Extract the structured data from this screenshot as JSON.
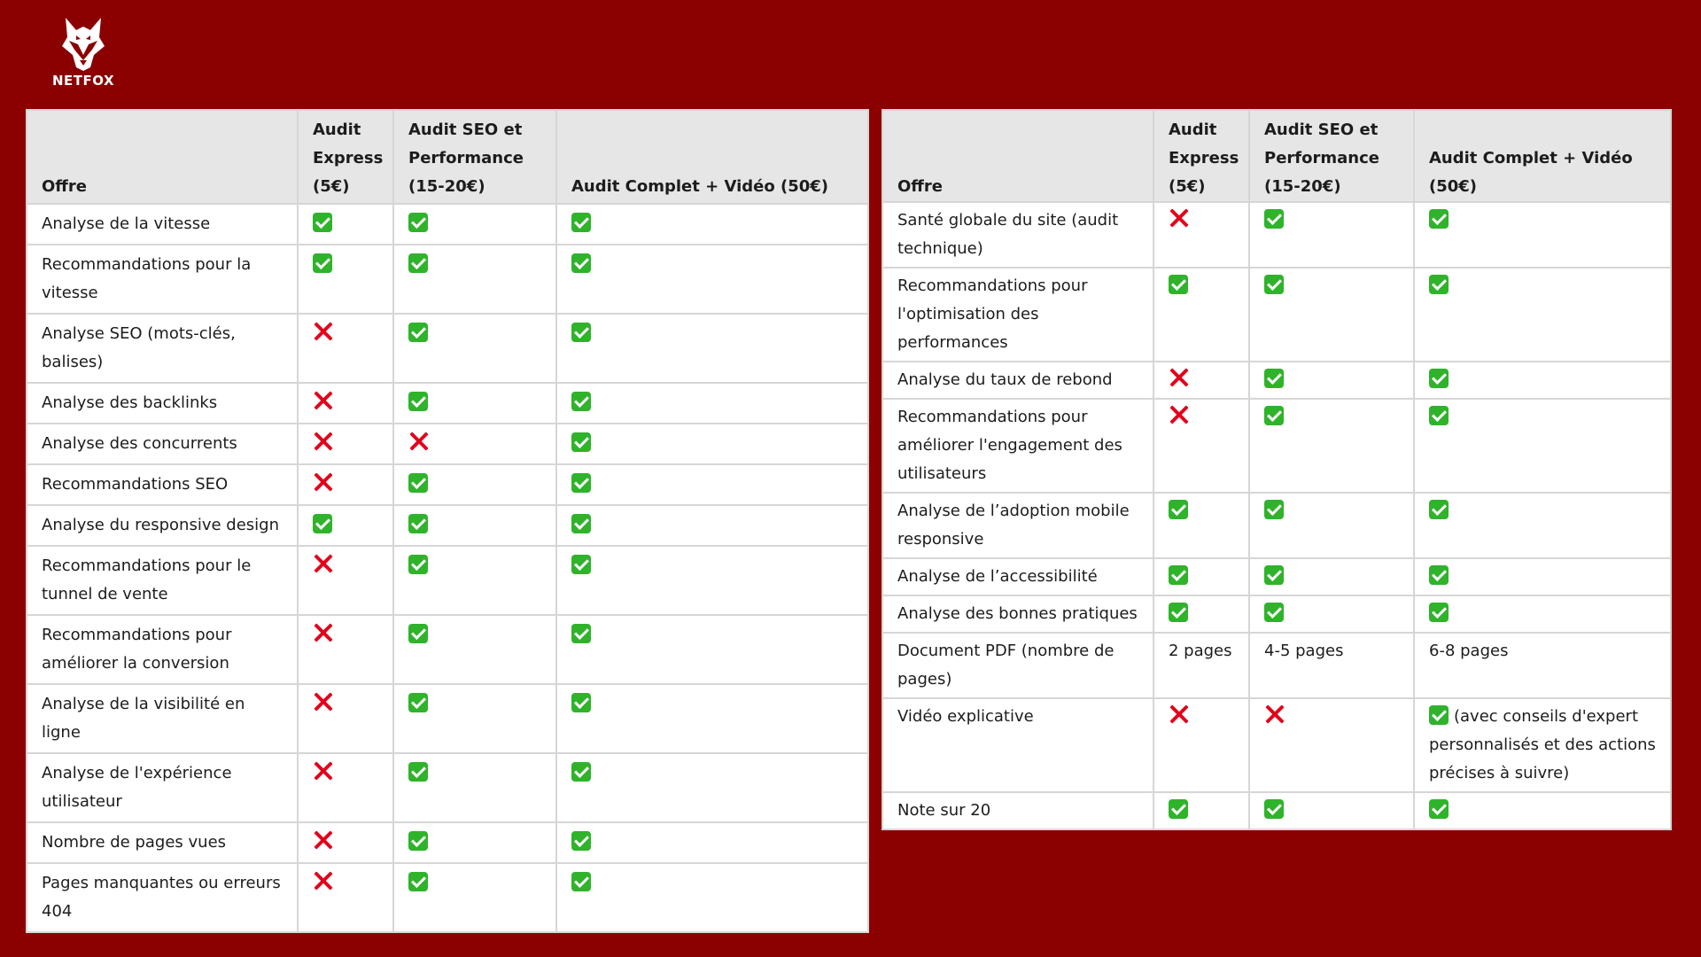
{
  "brand": {
    "name": "NETFOX"
  },
  "icons": {
    "yes": "check-icon",
    "no": "cross-icon",
    "logo": "fox-logo-icon"
  },
  "colors": {
    "background": "#8b0000",
    "check": "#2fb32b",
    "cross": "#e3001b",
    "header": "#e6e6e6"
  },
  "columns": [
    "Offre",
    "Audit Express (5€)",
    "Audit SEO et Performance (15-20€)",
    "Audit Complet + Vidéo (50€)"
  ],
  "left_table": {
    "rows": [
      {
        "label": "Analyse de la vitesse",
        "cells": [
          "yes",
          "yes",
          "yes"
        ]
      },
      {
        "label": "Recommandations pour la vitesse",
        "cells": [
          "yes",
          "yes",
          "yes"
        ]
      },
      {
        "label": "Analyse SEO (mots-clés, balises)",
        "cells": [
          "no",
          "yes",
          "yes"
        ]
      },
      {
        "label": "Analyse des backlinks",
        "cells": [
          "no",
          "yes",
          "yes"
        ]
      },
      {
        "label": "Analyse des concurrents",
        "cells": [
          "no",
          "no",
          "yes"
        ]
      },
      {
        "label": "Recommandations SEO",
        "cells": [
          "no",
          "yes",
          "yes"
        ]
      },
      {
        "label": "Analyse du responsive design",
        "cells": [
          "yes",
          "yes",
          "yes"
        ]
      },
      {
        "label": "Recommandations pour le tunnel de vente",
        "cells": [
          "no",
          "yes",
          "yes"
        ]
      },
      {
        "label": "Recommandations pour améliorer la conversion",
        "cells": [
          "no",
          "yes",
          "yes"
        ]
      },
      {
        "label": "Analyse de la visibilité en ligne",
        "cells": [
          "no",
          "yes",
          "yes"
        ]
      },
      {
        "label": "Analyse de l'expérience utilisateur",
        "cells": [
          "no",
          "yes",
          "yes"
        ]
      },
      {
        "label": "Nombre de pages vues",
        "cells": [
          "no",
          "yes",
          "yes"
        ]
      },
      {
        "label": "Pages manquantes ou erreurs 404",
        "cells": [
          "no",
          "yes",
          "yes"
        ]
      }
    ]
  },
  "right_table": {
    "rows": [
      {
        "label": "Santé globale du site (audit technique)",
        "cells": [
          "no",
          "yes",
          "yes"
        ]
      },
      {
        "label": "Recommandations pour l'optimisation des performances",
        "cells": [
          "yes",
          "yes",
          "yes"
        ]
      },
      {
        "label": "Analyse du taux de rebond",
        "cells": [
          "no",
          "yes",
          "yes"
        ]
      },
      {
        "label": "Recommandations pour améliorer l'engagement des utilisateurs",
        "cells": [
          "no",
          "yes",
          "yes"
        ]
      },
      {
        "label": "Analyse de l’adoption mobile responsive",
        "cells": [
          "yes",
          "yes",
          "yes"
        ]
      },
      {
        "label": "Analyse de l’accessibilité",
        "cells": [
          "yes",
          "yes",
          "yes"
        ]
      },
      {
        "label": "Analyse des bonnes pratiques",
        "cells": [
          "yes",
          "yes",
          "yes"
        ]
      },
      {
        "label": "Document PDF (nombre de pages)",
        "cells": [
          "2 pages",
          "4-5 pages",
          "6-8 pages"
        ]
      },
      {
        "label": "Vidéo explicative",
        "cells": [
          "no",
          "no",
          "yes"
        ],
        "note": "(avec conseils d'expert personnalisés et des actions précises à suivre)"
      },
      {
        "label": "Note sur 20",
        "cells": [
          "yes",
          "yes",
          "yes"
        ]
      }
    ]
  }
}
